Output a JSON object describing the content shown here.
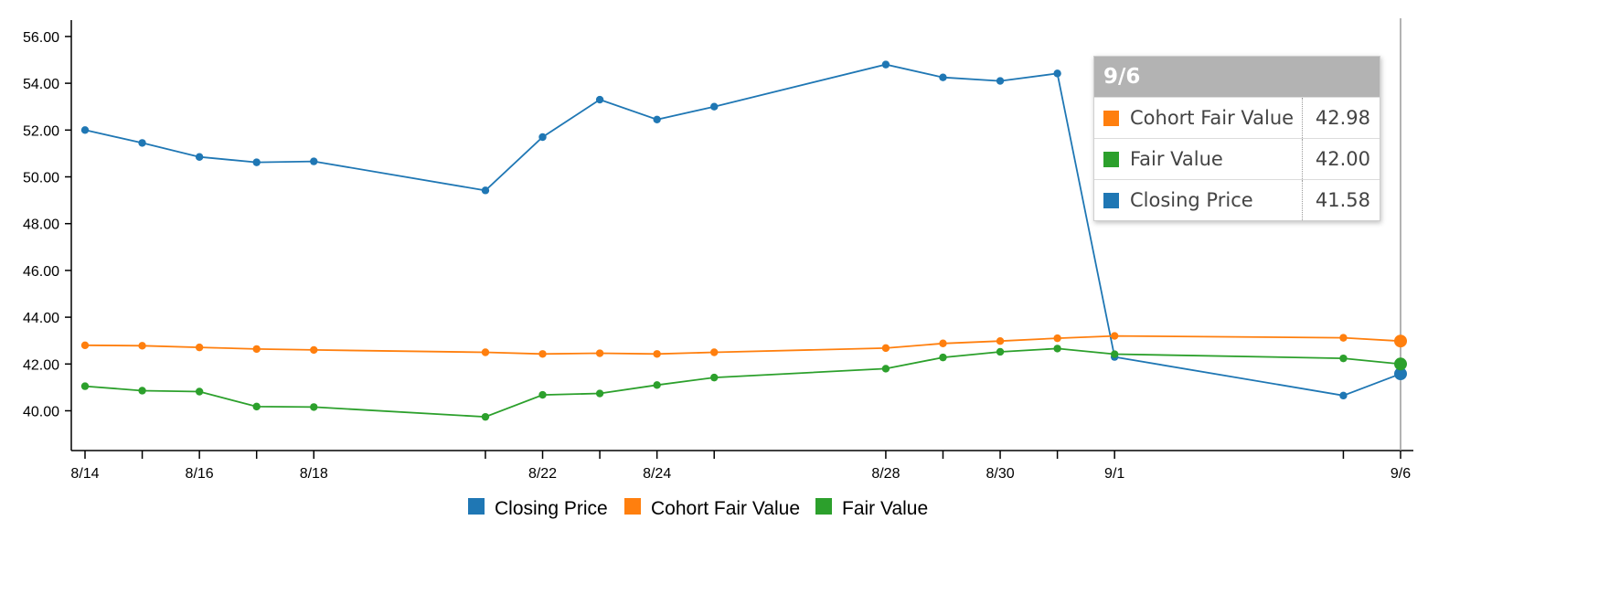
{
  "chart_data": {
    "type": "line",
    "dates": [
      "8/14",
      "8/15",
      "8/16",
      "8/17",
      "8/18",
      "8/21",
      "8/22",
      "8/23",
      "8/24",
      "8/25",
      "8/28",
      "8/29",
      "8/30",
      "8/31",
      "9/1",
      "9/5",
      "9/6"
    ],
    "x_tick_labels": [
      "8/14",
      "",
      "8/16",
      "",
      "8/18",
      "",
      "8/22",
      "",
      "8/24",
      "",
      "8/28",
      "",
      "8/30",
      "",
      "9/1",
      "",
      "9/6"
    ],
    "y_ticks": [
      "40.00",
      "42.00",
      "44.00",
      "46.00",
      "48.00",
      "50.00",
      "52.00",
      "54.00",
      "56.00"
    ],
    "ylim": [
      38.3,
      56.7
    ],
    "series": [
      {
        "name": "Closing Price",
        "color": "#1f77b4",
        "values": [
          52.0,
          51.45,
          50.85,
          50.62,
          50.66,
          49.42,
          51.7,
          53.3,
          52.45,
          53.0,
          54.8,
          54.25,
          54.1,
          54.42,
          42.3,
          40.65,
          41.58
        ]
      },
      {
        "name": "Cohort Fair Value",
        "color": "#ff7f0e",
        "values": [
          42.8,
          42.78,
          42.71,
          42.64,
          42.6,
          42.5,
          42.43,
          42.46,
          42.43,
          42.5,
          42.68,
          42.88,
          42.98,
          43.1,
          43.2,
          43.12,
          42.98
        ]
      },
      {
        "name": "Fair Value",
        "color": "#2ca02c",
        "values": [
          41.05,
          40.86,
          40.82,
          40.18,
          40.16,
          39.74,
          40.68,
          40.74,
          41.1,
          41.42,
          41.8,
          42.28,
          42.52,
          42.66,
          42.42,
          42.24,
          42.0
        ]
      }
    ],
    "legend": [
      {
        "label": "Closing Price",
        "color": "#1f77b4"
      },
      {
        "label": "Cohort Fair Value",
        "color": "#ff7f0e"
      },
      {
        "label": "Fair Value",
        "color": "#2ca02c"
      }
    ],
    "legend_position": "bottom-center",
    "grid": false,
    "highlighted_date": "9/6"
  },
  "tooltip": {
    "title": "9/6",
    "rows": [
      {
        "label": "Cohort Fair Value",
        "value": "42.98",
        "color": "#ff7f0e"
      },
      {
        "label": "Fair Value",
        "value": "42.00",
        "color": "#2ca02c"
      },
      {
        "label": "Closing Price",
        "value": "41.58",
        "color": "#1f77b4"
      }
    ]
  }
}
